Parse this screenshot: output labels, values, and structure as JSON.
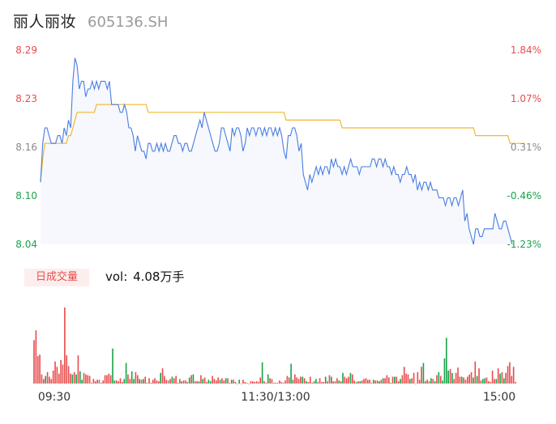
{
  "header": {
    "name": "丽人丽妆",
    "code": "605136.SH"
  },
  "volume_panel": {
    "badge_label": "日成交量",
    "vol_prefix": "vol:",
    "vol_value": "4.08万手"
  },
  "colors": {
    "up": "#e84c4c",
    "down": "#1aa34a",
    "neutral": "#8a8a8a",
    "price_line": "#4a7de2",
    "avg_line": "#f2b830",
    "area_fill": "#f6f8fd"
  },
  "chart_data": [
    {
      "type": "line",
      "title": "",
      "x_ticks": [
        "09:30",
        "11:30/13:00",
        "15:00"
      ],
      "ylim": [
        8.04,
        8.29
      ],
      "prev_close": 8.14,
      "y_ticks_left": [
        "8.29",
        "8.23",
        "8.16",
        "8.10",
        "8.04"
      ],
      "y_ticks_right": [
        "1.84%",
        "1.07%",
        "0.31%",
        "-0.46%",
        "-1.23%"
      ],
      "series": [
        {
          "role": "price",
          "values": [
            8.12,
            8.17,
            8.19,
            8.19,
            8.18,
            8.17,
            8.17,
            8.17,
            8.18,
            8.18,
            8.17,
            8.19,
            8.18,
            8.2,
            8.19,
            8.25,
            8.28,
            8.27,
            8.24,
            8.25,
            8.25,
            8.23,
            8.24,
            8.24,
            8.25,
            8.24,
            8.25,
            8.24,
            8.25,
            8.25,
            8.25,
            8.24,
            8.25,
            8.22,
            8.22,
            8.22,
            8.22,
            8.21,
            8.21,
            8.22,
            8.21,
            8.19,
            8.19,
            8.18,
            8.16,
            8.18,
            8.17,
            8.16,
            8.16,
            8.15,
            8.17,
            8.17,
            8.16,
            8.16,
            8.17,
            8.16,
            8.17,
            8.16,
            8.17,
            8.16,
            8.16,
            8.17,
            8.18,
            8.18,
            8.17,
            8.17,
            8.16,
            8.17,
            8.17,
            8.16,
            8.16,
            8.17,
            8.18,
            8.19,
            8.2,
            8.19,
            8.21,
            8.2,
            8.19,
            8.18,
            8.17,
            8.16,
            8.16,
            8.17,
            8.19,
            8.19,
            8.18,
            8.17,
            8.16,
            8.19,
            8.18,
            8.19,
            8.19,
            8.18,
            8.16,
            8.17,
            8.19,
            8.18,
            8.19,
            8.19,
            8.18,
            8.19,
            8.19,
            8.18,
            8.19,
            8.18,
            8.19,
            8.19,
            8.18,
            8.19,
            8.18,
            8.19,
            8.18,
            8.16,
            8.15,
            8.18,
            8.18,
            8.19,
            8.19,
            8.18,
            8.16,
            8.17,
            8.13,
            8.12,
            8.11,
            8.13,
            8.12,
            8.13,
            8.14,
            8.13,
            8.14,
            8.13,
            8.14,
            8.14,
            8.13,
            8.15,
            8.14,
            8.15,
            8.14,
            8.14,
            8.13,
            8.14,
            8.13,
            8.14,
            8.15,
            8.14,
            8.14,
            8.14,
            8.13,
            8.14,
            8.14,
            8.14,
            8.14,
            8.14,
            8.15,
            8.15,
            8.14,
            8.15,
            8.15,
            8.14,
            8.15,
            8.14,
            8.14,
            8.13,
            8.14,
            8.13,
            8.13,
            8.12,
            8.13,
            8.13,
            8.14,
            8.13,
            8.13,
            8.12,
            8.13,
            8.11,
            8.12,
            8.11,
            8.12,
            8.12,
            8.11,
            8.12,
            8.11,
            8.11,
            8.11,
            8.1,
            8.1,
            8.1,
            8.09,
            8.1,
            8.1,
            8.09,
            8.1,
            8.1,
            8.09,
            8.1,
            8.11,
            8.07,
            8.08,
            8.06,
            8.05,
            8.04,
            8.06,
            8.06,
            8.05,
            8.05,
            8.06,
            8.06,
            8.06,
            8.06,
            8.06,
            8.08,
            8.07,
            8.06,
            8.06,
            8.07,
            8.07,
            8.06,
            8.05,
            8.04
          ]
        },
        {
          "role": "average",
          "values": [
            8.12,
            8.15,
            8.17,
            8.17,
            8.17,
            8.17,
            8.17,
            8.17,
            8.17,
            8.17,
            8.17,
            8.17,
            8.17,
            8.18,
            8.18,
            8.19,
            8.2,
            8.21,
            8.21,
            8.21,
            8.21,
            8.21,
            8.21,
            8.21,
            8.21,
            8.21,
            8.22,
            8.22,
            8.22,
            8.22,
            8.22,
            8.22,
            8.22,
            8.22,
            8.22,
            8.22,
            8.22,
            8.22,
            8.22,
            8.22,
            8.22,
            8.22,
            8.22,
            8.22,
            8.22,
            8.22,
            8.22,
            8.22,
            8.22,
            8.22,
            8.21,
            8.21,
            8.21,
            8.21,
            8.21,
            8.21,
            8.21,
            8.21,
            8.21,
            8.21,
            8.21,
            8.21,
            8.21,
            8.21,
            8.21,
            8.21,
            8.21,
            8.21,
            8.21,
            8.21,
            8.21,
            8.21,
            8.21,
            8.21,
            8.21,
            8.21,
            8.21,
            8.21,
            8.21,
            8.21,
            8.21,
            8.21,
            8.21,
            8.21,
            8.21,
            8.21,
            8.21,
            8.21,
            8.21,
            8.21,
            8.21,
            8.21,
            8.21,
            8.21,
            8.21,
            8.21,
            8.21,
            8.21,
            8.21,
            8.21,
            8.21,
            8.21,
            8.21,
            8.21,
            8.21,
            8.21,
            8.21,
            8.21,
            8.21,
            8.21,
            8.21,
            8.21,
            8.21,
            8.21,
            8.2,
            8.2,
            8.2,
            8.2,
            8.2,
            8.2,
            8.2,
            8.2,
            8.2,
            8.2,
            8.2,
            8.2,
            8.2,
            8.2,
            8.2,
            8.2,
            8.2,
            8.2,
            8.2,
            8.2,
            8.2,
            8.2,
            8.2,
            8.2,
            8.2,
            8.2,
            8.19,
            8.19,
            8.19,
            8.19,
            8.19,
            8.19,
            8.19,
            8.19,
            8.19,
            8.19,
            8.19,
            8.19,
            8.19,
            8.19,
            8.19,
            8.19,
            8.19,
            8.19,
            8.19,
            8.19,
            8.19,
            8.19,
            8.19,
            8.19,
            8.19,
            8.19,
            8.19,
            8.19,
            8.19,
            8.19,
            8.19,
            8.19,
            8.19,
            8.19,
            8.19,
            8.19,
            8.19,
            8.19,
            8.19,
            8.19,
            8.19,
            8.19,
            8.19,
            8.19,
            8.19,
            8.19,
            8.19,
            8.19,
            8.19,
            8.19,
            8.19,
            8.19,
            8.19,
            8.19,
            8.19,
            8.19,
            8.19,
            8.19,
            8.19,
            8.19,
            8.19,
            8.19,
            8.18,
            8.18,
            8.18,
            8.18,
            8.18,
            8.18,
            8.18,
            8.18,
            8.18,
            8.18,
            8.18,
            8.18,
            8.18,
            8.18,
            8.18,
            8.18,
            8.17,
            8.17,
            8.17,
            8.17,
            8.17,
            8.17,
            8.17,
            8.17
          ]
        }
      ]
    },
    {
      "type": "bar",
      "title": "",
      "x_ticks": [
        "09:30",
        "11:30/13:00",
        "15:00"
      ],
      "values": [
        57,
        70,
        36,
        38,
        12,
        6,
        10,
        15,
        9,
        6,
        17,
        29,
        22,
        13,
        31,
        25,
        100,
        37,
        23,
        13,
        12,
        15,
        12,
        37,
        16,
        5,
        14,
        12,
        11,
        10,
        1,
        6,
        3,
        5,
        5,
        1,
        4,
        11,
        11,
        13,
        11,
        46,
        4,
        4,
        3,
        7,
        2,
        6,
        27,
        12,
        6,
        16,
        6,
        15,
        11,
        6,
        5,
        6,
        9,
        1,
        7,
        1,
        5,
        7,
        4,
        3,
        14,
        20,
        10,
        5,
        4,
        6,
        9,
        7,
        10,
        1,
        6,
        3,
        4,
        4,
        2,
        8,
        11,
        12,
        3,
        3,
        3,
        11,
        6,
        8,
        2,
        5,
        3,
        10,
        6,
        4,
        8,
        5,
        7,
        4,
        7,
        7,
        1,
        5,
        5,
        2,
        0,
        5,
        0,
        5,
        2,
        1,
        0,
        3,
        3,
        2,
        3,
        2,
        8,
        28,
        3,
        1,
        12,
        7,
        6,
        1,
        1,
        1,
        4,
        2,
        1,
        4,
        10,
        8,
        26,
        5,
        12,
        8,
        6,
        9,
        9,
        7,
        3,
        2,
        9,
        1,
        3,
        6,
        2,
        7,
        2,
        2,
        9,
        3,
        11,
        9,
        3,
        3,
        7,
        4,
        3,
        14,
        9,
        7,
        9,
        14,
        12,
        4,
        2,
        3,
        3,
        4,
        6,
        7,
        5,
        5,
        1,
        5,
        4,
        4,
        3,
        5,
        7,
        7,
        11,
        8,
        1,
        9,
        9,
        9,
        3,
        6,
        11,
        22,
        13,
        12,
        6,
        7,
        14,
        0,
        15,
        5,
        22,
        27,
        3,
        5,
        3,
        7,
        6,
        3,
        11,
        15,
        10,
        4,
        33,
        60,
        17,
        19,
        14,
        6,
        14,
        21,
        9,
        9,
        8,
        5,
        9,
        12,
        15,
        8,
        29,
        10,
        20,
        4,
        6,
        7,
        8,
        3,
        2,
        17,
        6,
        6,
        20,
        13,
        15,
        7,
        14,
        23,
        28,
        10,
        22,
        2
      ],
      "value_colors": [
        "up",
        "up",
        "up",
        "up",
        "up",
        "up",
        "down",
        "up",
        "up",
        "up",
        "up",
        "up",
        "up",
        "up",
        "up",
        "up",
        "up",
        "up",
        "up",
        "up",
        "down",
        "up",
        "down",
        "up",
        "down",
        "down",
        "up",
        "up",
        "up",
        "up",
        "up",
        "up",
        "up",
        "up",
        "neutral",
        "up",
        "up",
        "up",
        "up",
        "up",
        "up",
        "down",
        "down",
        "up",
        "up",
        "up",
        "up",
        "down",
        "down",
        "up",
        "up",
        "down",
        "down",
        "up",
        "up",
        "down",
        "up",
        "down",
        "up",
        "up",
        "up",
        "down",
        "up",
        "up",
        "up",
        "up",
        "down",
        "up",
        "up",
        "up",
        "neutral",
        "up",
        "down",
        "up",
        "up",
        "down",
        "up",
        "down",
        "up",
        "up",
        "up",
        "down",
        "up",
        "down",
        "up",
        "up",
        "down",
        "up",
        "down",
        "up",
        "up",
        "down",
        "down",
        "up",
        "up",
        "up",
        "up",
        "down",
        "up",
        "up",
        "down",
        "up",
        "up",
        "down",
        "up",
        "up",
        "up",
        "down",
        "up",
        "up",
        "up",
        "up",
        "down",
        "up",
        "up",
        "up",
        "up",
        "up",
        "up",
        "down",
        "up",
        "up",
        "down",
        "up",
        "up",
        "up",
        "down",
        "up",
        "up",
        "up",
        "up",
        "up",
        "up",
        "up",
        "down",
        "down",
        "up",
        "up",
        "up",
        "up",
        "down",
        "up",
        "down",
        "up",
        "up",
        "up",
        "down",
        "down",
        "up",
        "up",
        "up",
        "up",
        "down",
        "up",
        "up",
        "down",
        "up",
        "up",
        "up",
        "down",
        "up",
        "down",
        "up",
        "up",
        "up",
        "down",
        "up",
        "up",
        "down",
        "up",
        "down",
        "up",
        "up",
        "up",
        "up",
        "up",
        "up",
        "down",
        "up",
        "up",
        "down",
        "up",
        "down",
        "up",
        "up",
        "up",
        "down",
        "up",
        "down",
        "up",
        "up",
        "down",
        "up",
        "up",
        "up",
        "up",
        "down",
        "up",
        "up",
        "down",
        "up",
        "up",
        "up",
        "down",
        "down",
        "up",
        "up",
        "down",
        "up",
        "down",
        "up",
        "down",
        "up",
        "down",
        "down",
        "down",
        "down",
        "up",
        "down",
        "up",
        "up",
        "up",
        "up",
        "down",
        "up",
        "up",
        "up",
        "up",
        "up",
        "down",
        "up",
        "down",
        "up",
        "up",
        "down",
        "down",
        "up",
        "up",
        "up",
        "up",
        "up",
        "down",
        "up",
        "down",
        "up",
        "down",
        "up",
        "up",
        "up",
        "up",
        "up",
        "up"
      ]
    }
  ]
}
